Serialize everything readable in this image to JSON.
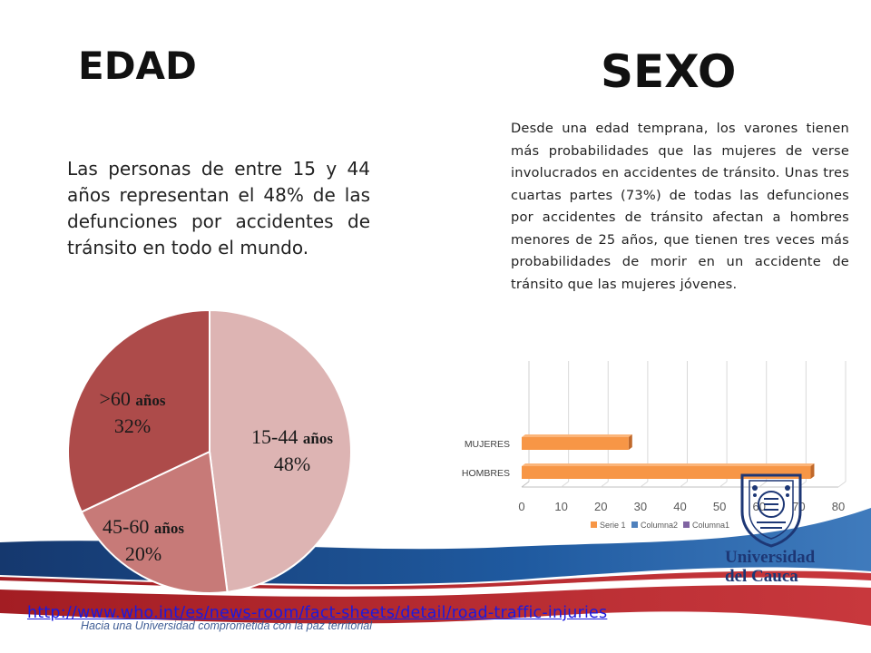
{
  "titles": {
    "edad": "EDAD",
    "sexo": "SEXO"
  },
  "edad_text": "Las personas de entre 15 y 44 años representan el 48% de las defunciones por accidentes de tránsito en todo el mundo.",
  "sexo_text": "Desde una edad temprana, los varones tienen más probabilidades que las mujeres de verse involucrados en accidentes de tránsito. Unas tres cuartas partes (73%) de todas las defunciones por accidentes de tránsito afectan a hombres menores de 25 años, que tienen tres veces más probabilidades de morir en un accidente de tránsito que las mujeres jóvenes.",
  "source_link": "http://www.who.int/es/news-room/fact-sheets/detail/road-traffic-injuries",
  "motto": "Hacia una Universidad comprometida con la paz territorial",
  "logo": {
    "name_line1": "Universidad",
    "name_line2": "del Cauca"
  },
  "colors": {
    "pie_15_44": "#ddb4b3",
    "pie_45_60": "#c77a78",
    "pie_60": "#ad4b4a",
    "bar": "#f79646",
    "bar_edge": "#c0692b",
    "band_blue": "#1f4e8c",
    "band_red": "#b0242a"
  },
  "chart_data": [
    {
      "type": "pie",
      "categories": [
        "15-44 años",
        "45-60 años",
        ">60 años"
      ],
      "values": [
        48,
        20,
        32
      ],
      "labels": [
        {
          "name": "15-44 años",
          "pct": "48%"
        },
        {
          "name": "45-60 años",
          "pct": "20%"
        },
        {
          "name": ">60 años",
          "pct": "32%"
        }
      ],
      "start": "12 o'clock",
      "direction": "clockwise"
    },
    {
      "type": "bar",
      "orientation": "horizontal",
      "categories": [
        "MUJERES",
        "HOMBRES"
      ],
      "series": [
        {
          "name": "Serie 1",
          "values": [
            27,
            73
          ]
        },
        {
          "name": "Columna2",
          "values": [
            0,
            0
          ]
        },
        {
          "name": "Columna1",
          "values": [
            0,
            0
          ]
        }
      ],
      "xlim": [
        0,
        80
      ],
      "xticks": [
        0,
        10,
        20,
        30,
        40,
        50,
        60,
        70,
        80
      ],
      "legend": [
        "Serie 1",
        "Columna2",
        "Columna1"
      ],
      "legend_colors": [
        "#f79646",
        "#4f81bd",
        "#8064a2"
      ],
      "legend_position": "bottom",
      "grid": true
    }
  ]
}
